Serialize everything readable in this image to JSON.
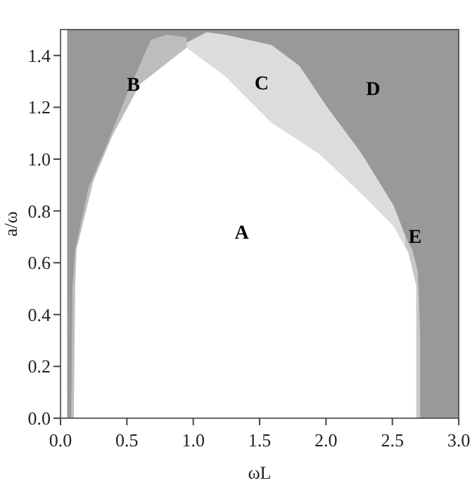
{
  "chart_data": {
    "type": "area",
    "xlabel": "ωL",
    "ylabel": "a/ω",
    "xlim": [
      0,
      3
    ],
    "ylim": [
      0,
      1.5
    ],
    "xticks": [
      {
        "value": 0,
        "label": "0.0"
      },
      {
        "value": 0.5,
        "label": "0.5"
      },
      {
        "value": 1,
        "label": "1.0"
      },
      {
        "value": 1.5,
        "label": "1.5"
      },
      {
        "value": 2,
        "label": "2.0"
      },
      {
        "value": 2.5,
        "label": "2.5"
      },
      {
        "value": 3,
        "label": "3.0"
      }
    ],
    "yticks": [
      {
        "value": 0,
        "label": "0.0"
      },
      {
        "value": 0.2,
        "label": "0.2"
      },
      {
        "value": 0.4,
        "label": "0.4"
      },
      {
        "value": 0.6,
        "label": "0.6"
      },
      {
        "value": 0.8,
        "label": "0.8"
      },
      {
        "value": 1,
        "label": "1.0"
      },
      {
        "value": 1.2,
        "label": "1.2"
      },
      {
        "value": 1.4,
        "label": "1.4"
      }
    ],
    "bands": [
      {
        "axis": "x",
        "from": 0.05,
        "to": 3,
        "label": "D",
        "color": "#999999"
      }
    ],
    "series": [
      {
        "name": "B",
        "color": "#bdbdbd",
        "x": [
          0.08,
          0.09,
          0.11,
          0.21,
          0.36,
          0.5,
          0.68,
          0.8,
          0.95
        ],
        "values": [
          0,
          0.5,
          0.65,
          0.89,
          1.07,
          1.25,
          1.46,
          1.48,
          1.47
        ]
      },
      {
        "name": "C",
        "color": "#dcdcdc",
        "x": [
          0.95,
          1.1,
          1.24,
          1.59,
          1.8,
          2.01,
          2.27,
          2.51,
          2.6
        ],
        "values": [
          1.45,
          1.49,
          1.48,
          1.44,
          1.36,
          1.2,
          1.02,
          0.82,
          0.7
        ]
      },
      {
        "name": "E",
        "color": "#c8c8c8",
        "x": [
          2.6,
          2.65,
          2.69,
          2.7,
          2.71,
          2.71
        ],
        "values": [
          0.7,
          0.65,
          0.57,
          0.47,
          0.3,
          0
        ]
      },
      {
        "name": "A",
        "color": "#ffffff",
        "x": [
          0.1,
          0.11,
          0.12,
          0.25,
          0.39,
          0.6,
          0.95,
          1.24,
          1.59,
          1.95,
          2.3,
          2.51,
          2.62,
          2.68,
          2.68
        ],
        "values": [
          0,
          0.5,
          0.65,
          0.92,
          1.09,
          1.29,
          1.43,
          1.32,
          1.14,
          1.02,
          0.85,
          0.74,
          0.64,
          0.51,
          0
        ]
      }
    ]
  }
}
